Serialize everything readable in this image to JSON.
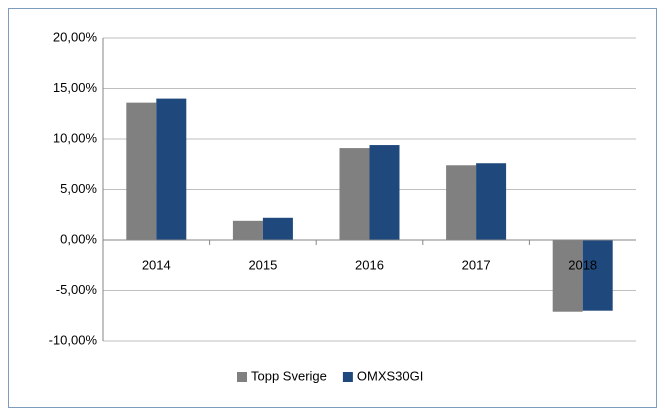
{
  "chart_data": {
    "type": "bar",
    "categories": [
      "2014",
      "2015",
      "2016",
      "2017",
      "2018"
    ],
    "series": [
      {
        "name": "Topp Sverige",
        "color": "#808080",
        "values": [
          13.6,
          1.9,
          9.1,
          7.4,
          -7.1
        ]
      },
      {
        "name": "OMXS30GI",
        "color": "#1f497d",
        "values": [
          14.0,
          2.2,
          9.4,
          7.6,
          -7.0
        ]
      }
    ],
    "ylim": [
      -10,
      20
    ],
    "yticks": [
      {
        "value": -10,
        "label": "-10,00%"
      },
      {
        "value": -5,
        "label": "-5,00%"
      },
      {
        "value": 0,
        "label": "0,00%"
      },
      {
        "value": 5,
        "label": "5,00%"
      },
      {
        "value": 10,
        "label": "10,00%"
      },
      {
        "value": 15,
        "label": "15,00%"
      },
      {
        "value": 20,
        "label": "20,00%"
      }
    ],
    "grid": true,
    "legend": "bottom"
  }
}
